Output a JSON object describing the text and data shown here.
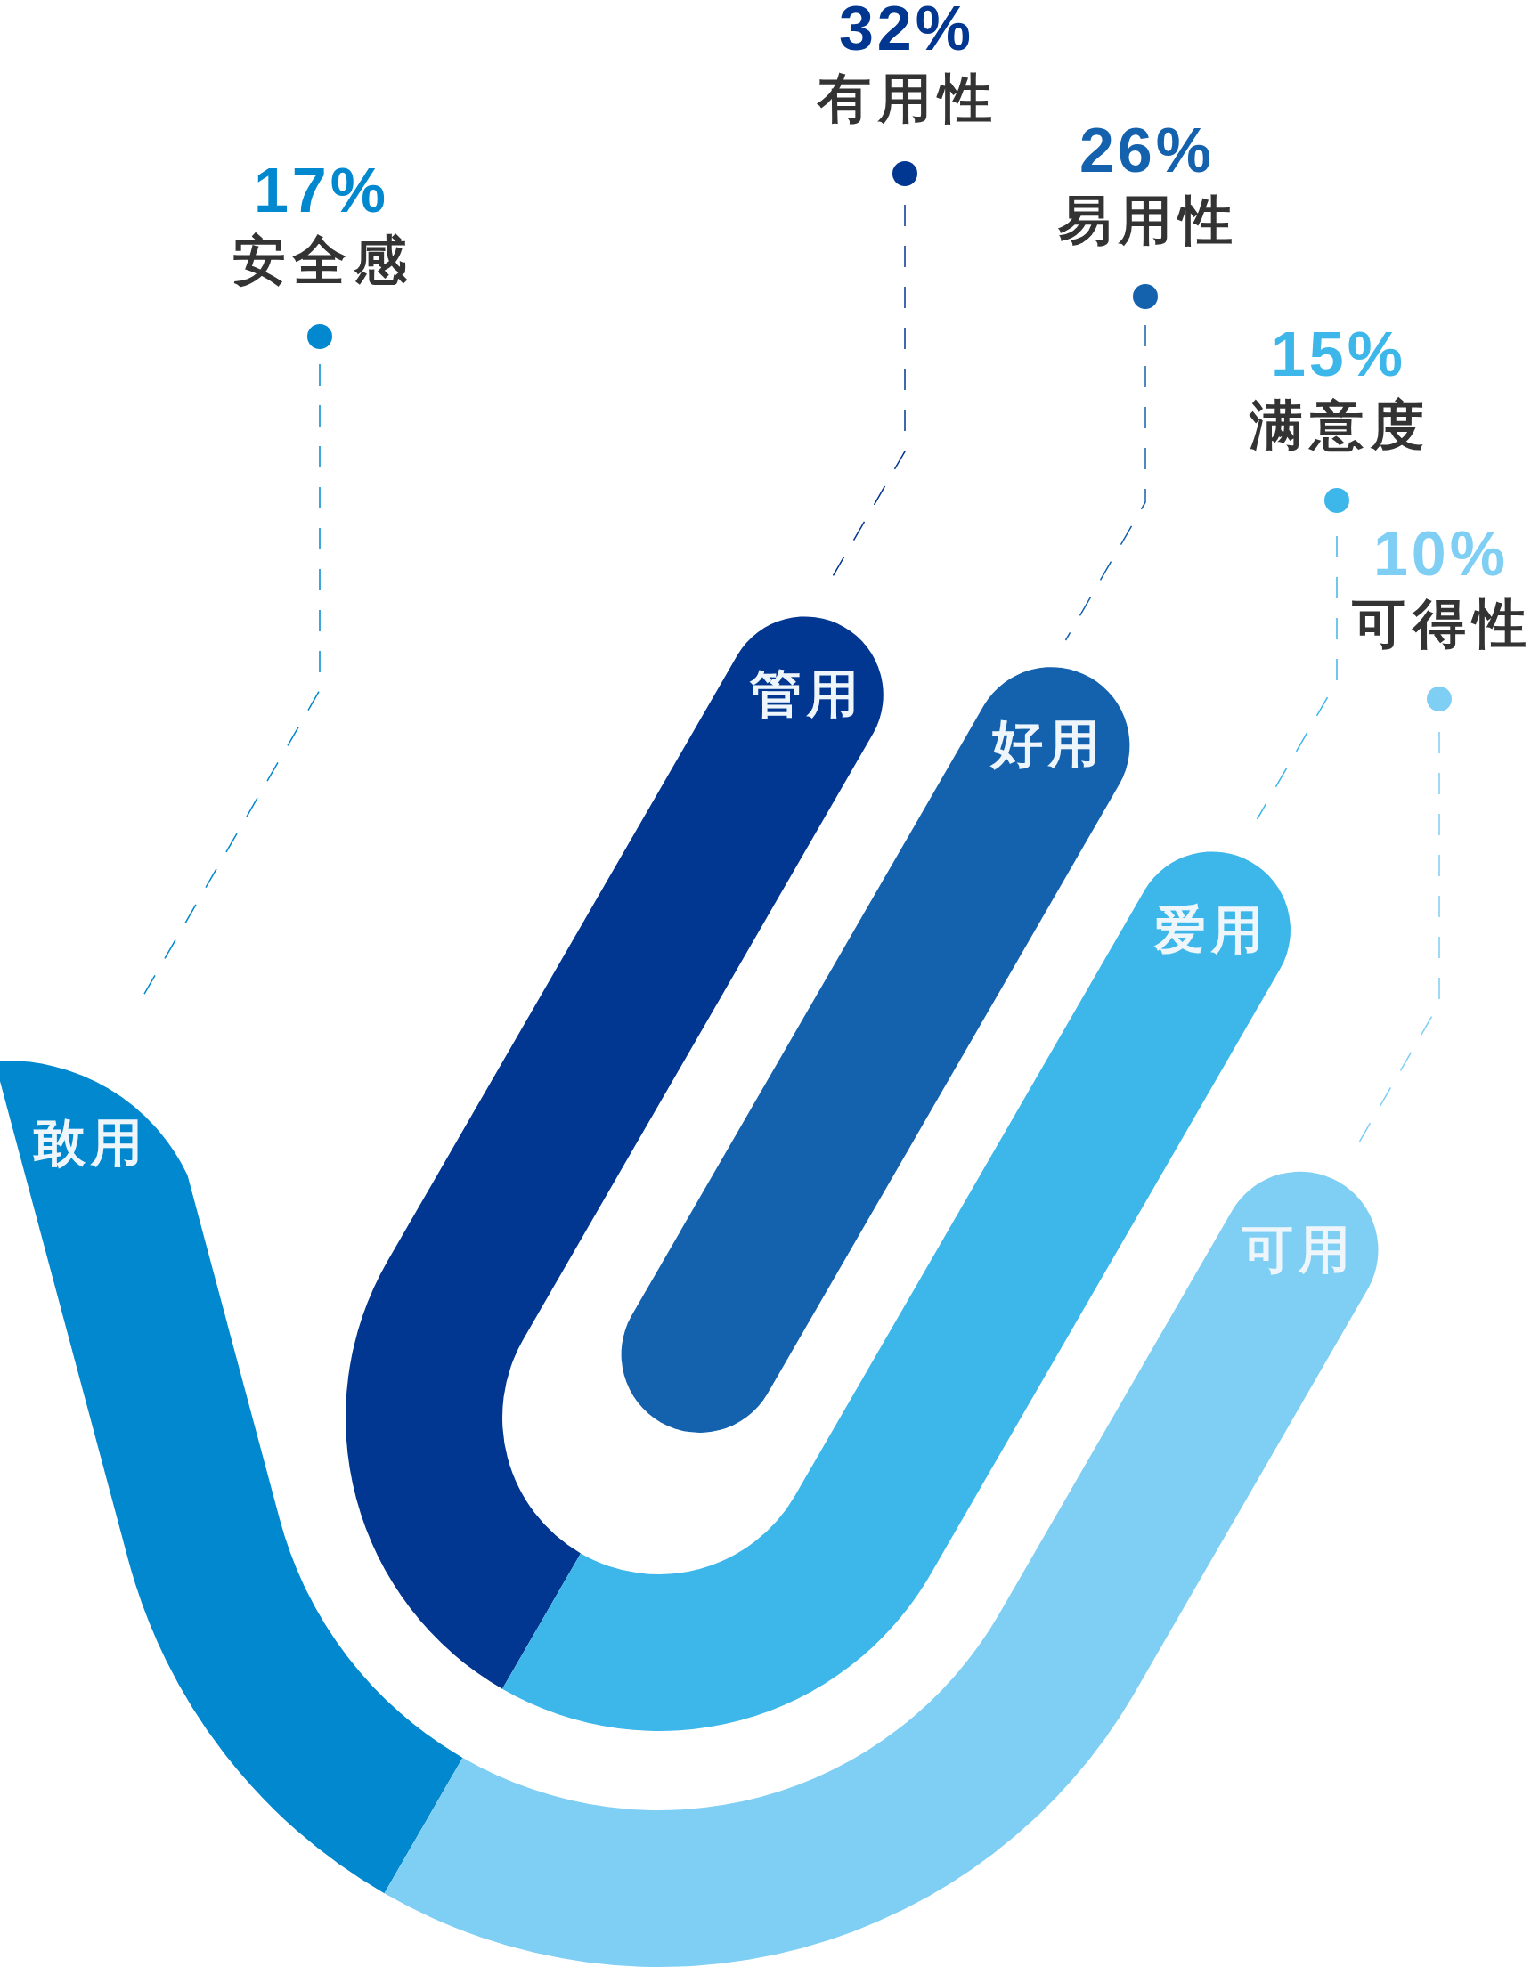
{
  "chart_data": {
    "type": "other",
    "categories": [
      "安全感",
      "有用性",
      "易用性",
      "满意度",
      "可得性"
    ],
    "values": [
      17,
      32,
      26,
      15,
      10
    ],
    "value_labels": [
      "17%",
      "32%",
      "26%",
      "15%",
      "10%"
    ],
    "colors": [
      "#0288cf",
      "#023791",
      "#1461ad",
      "#3db7ea",
      "#7fcef3"
    ],
    "annotations": [
      "敢用",
      "管用",
      "好用",
      "爱用",
      "可用"
    ]
  }
}
